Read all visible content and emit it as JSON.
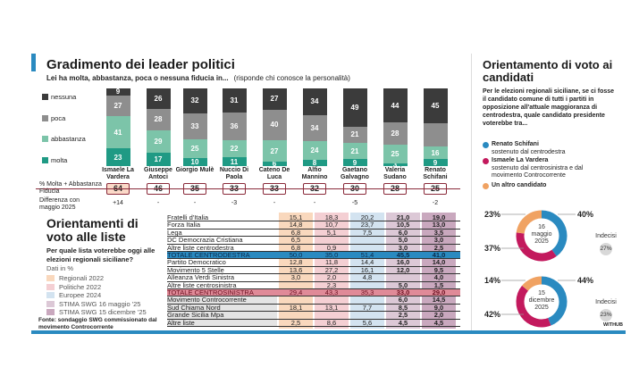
{
  "leaders": {
    "title": "Gradimento dei leader politici",
    "subtitle": "Lei ha molta, abbastanza, poca o nessuna fiducia in...",
    "note": "(risponde chi conosce la personalità)",
    "legend": [
      "nessuna",
      "poca",
      "abbastanza",
      "molta"
    ],
    "colors": {
      "nessuna": "#3b3b3b",
      "poca": "#8e8e8e",
      "abbastanza": "#7cc4a9",
      "molta": "#1f9a84"
    },
    "row_label_fiducia": "% Molta + Abbastanza Fiducia",
    "row_label_diff": "Differenza con maggio 2025",
    "chart_data": {
      "type": "bar",
      "stacked": true,
      "categories": [
        "Ismaele La Vardera",
        "Giuseppe Antoci",
        "Giorgio Mulè",
        "Nuccio Di Paola",
        "Cateno De Luca",
        "Alfio Mannino",
        "Gaetano Galvagno",
        "Valeria Sudano",
        "Renato Schifani"
      ],
      "series": [
        {
          "name": "molta",
          "values": [
            23,
            17,
            10,
            11,
            6,
            8,
            9,
            3,
            9
          ]
        },
        {
          "name": "abbastanza",
          "values": [
            41,
            29,
            25,
            22,
            27,
            24,
            21,
            25,
            16
          ]
        },
        {
          "name": "poca",
          "values": [
            27,
            28,
            33,
            36,
            40,
            34,
            21,
            28,
            30
          ]
        },
        {
          "name": "nessuna",
          "values": [
            9,
            26,
            32,
            31,
            27,
            34,
            49,
            44,
            45
          ]
        }
      ],
      "labels_shown": {
        "poca": [
          27,
          28,
          33,
          36,
          40,
          34,
          21,
          28,
          null
        ]
      },
      "fiducia": [
        64,
        46,
        35,
        33,
        33,
        32,
        30,
        28,
        25
      ],
      "diff": [
        "+14",
        "-",
        "-",
        "-3",
        "-",
        "-",
        "-5",
        "",
        "-2"
      ]
    }
  },
  "lists": {
    "title": "Orientamenti di voto alle liste",
    "question": "Per quale lista voterebbe oggi alle elezioni regionali siciliane?",
    "unit": "Dati in %",
    "legend": [
      "Regionali 2022",
      "Politiche 2022",
      "Europee 2024",
      "STIMA SWG 16 maggio '25",
      "STIMA SWG 15 dicembre '25"
    ],
    "colors": [
      "#f9d8bd",
      "#f4cfd3",
      "#d3e3f0",
      "#dcc8d6",
      "#c9a8be"
    ],
    "source": "Fonte: sondaggio SWG commissionato dal movimento Controcorrente",
    "chart_data": {
      "type": "table",
      "rows": [
        {
          "label": "Fratelli d'Italia",
          "v": [
            "15,1",
            "18,3",
            "20,2",
            "21,0",
            "19,0"
          ]
        },
        {
          "label": "Forza Italia",
          "v": [
            "14,8",
            "10,7",
            "23,7",
            "10,5",
            "13,0"
          ]
        },
        {
          "label": "Lega",
          "v": [
            "6,8",
            "5,1",
            "7,5",
            "6,0",
            "3,5"
          ]
        },
        {
          "label": "DC Democrazia Cristiana",
          "v": [
            "6,5",
            "",
            "",
            "5,0",
            "3,0"
          ]
        },
        {
          "label": "Altre liste centrodestra",
          "v": [
            "6,8",
            "0,9",
            "",
            "3,0",
            "2,5"
          ]
        },
        {
          "label": "TOTALE CENTRODESTRA",
          "v": [
            "50,0",
            "35,0",
            "51,4",
            "45,5",
            "41,0"
          ],
          "total": "right"
        },
        {
          "label": "Partito Democratico",
          "v": [
            "12,8",
            "11,8",
            "14,4",
            "16,0",
            "14,0"
          ]
        },
        {
          "label": "Movimento 5 Stelle",
          "v": [
            "13,6",
            "27,2",
            "16,1",
            "12,0",
            "9,5"
          ]
        },
        {
          "label": "Alleanza Verdi Sinistra",
          "v": [
            "3,0",
            "2,0",
            "4,8",
            "",
            "4,0"
          ]
        },
        {
          "label": "Altre liste centrosinistra",
          "v": [
            "",
            "2,3",
            "",
            "5,0",
            "1,5"
          ]
        },
        {
          "label": "TOTALE CENTROSINISTRA",
          "v": [
            "29,4",
            "43,3",
            "35,3",
            "33,0",
            "29,0"
          ],
          "total": "left"
        },
        {
          "label": "Movimento Controcorrente",
          "v": [
            "",
            "",
            "",
            "6,0",
            "14,5"
          ]
        },
        {
          "label": "Sud Chiama Nord",
          "v": [
            "18,1",
            "13,1",
            "7,7",
            "8,5",
            "9,0"
          ]
        },
        {
          "label": "Grande Sicilia Mpa",
          "v": [
            "",
            "",
            "",
            "2,5",
            "2,0"
          ]
        },
        {
          "label": "Altre liste",
          "v": [
            "2,5",
            "8,6",
            "5,6",
            "4,5",
            "4,5"
          ]
        }
      ]
    }
  },
  "candidates": {
    "title": "Orientamento di voto ai candidati",
    "question": "Per le elezioni regionali siciliane, se ci fosse il candidato comune di tutti i partiti in opposizione all'attuale maggioranza di centrodestra, quale candidato presidente voterebbe tra...",
    "legend": [
      {
        "name": "Renato Schifani",
        "desc": "sostenuto dal centrodestra",
        "color": "#2a8ac0"
      },
      {
        "name": "Ismaele La Vardera",
        "desc": "sostenuto dal centrosinistra e dal movimento Controcorrente",
        "color": "#c3195d"
      },
      {
        "name": "Un altro candidato",
        "desc": "",
        "color": "#f0a262"
      }
    ],
    "chart_data": [
      {
        "type": "pie",
        "date_lines": [
          "16",
          "maggio",
          "2025"
        ],
        "values": [
          40,
          37,
          23
        ],
        "labels": [
          "40%",
          "37%",
          "23%"
        ],
        "undecided_label": "Indecisi",
        "undecided": "27%"
      },
      {
        "type": "pie",
        "date_lines": [
          "15",
          "dicembre",
          "2025"
        ],
        "values": [
          44,
          42,
          14
        ],
        "labels": [
          "44%",
          "42%",
          "14%"
        ],
        "undecided_label": "Indecisi",
        "undecided": "23%"
      }
    ],
    "credit": "WITHUB"
  }
}
